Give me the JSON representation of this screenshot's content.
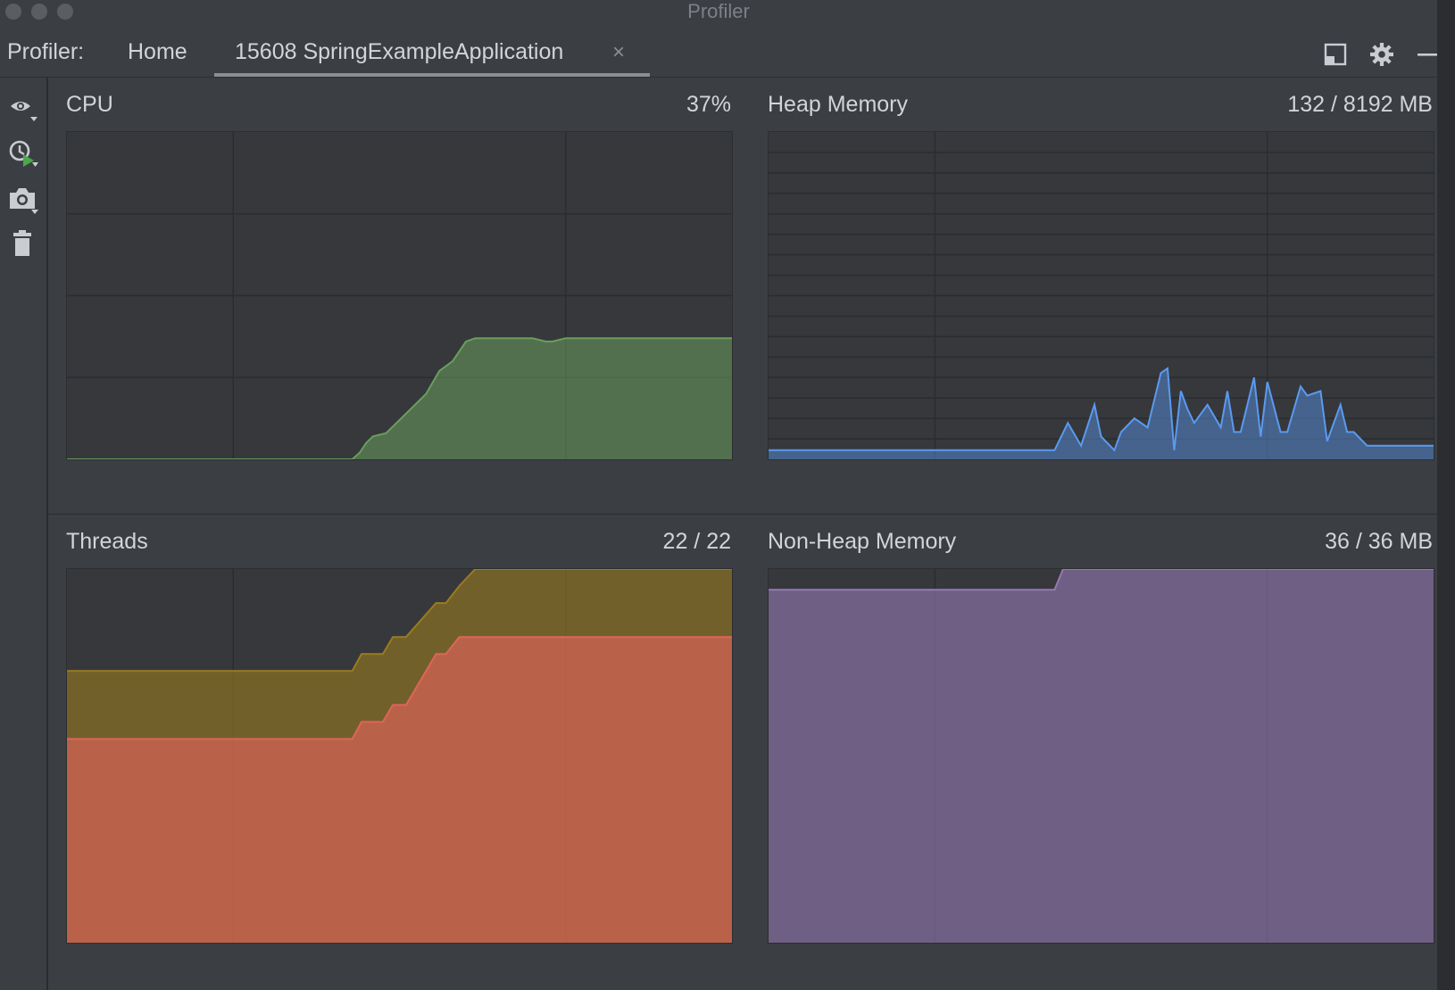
{
  "window": {
    "title": "Profiler"
  },
  "toolbar": {
    "prefix": "Profiler:",
    "home_tab": "Home",
    "session_tab": "15608 SpringExampleApplication",
    "close_symbol": "×"
  },
  "icons": {
    "top": [
      "restore-layout-icon",
      "gear-icon",
      "minimize-icon"
    ],
    "side": [
      "eye-dropdown-icon",
      "clock-run-icon",
      "camera-icon",
      "trash-icon"
    ]
  },
  "colors": {
    "cpu": "#6a9e5c",
    "heap": "#5a9af0",
    "threads_total": "#9a7b1e",
    "threads_active": "#e0645a",
    "non_heap": "#9679b4"
  },
  "panels": {
    "cpu": {
      "title": "CPU",
      "value": "37%"
    },
    "heap": {
      "title": "Heap Memory",
      "value": "132 / 8192 MB"
    },
    "threads": {
      "title": "Threads",
      "value": "22 / 22"
    },
    "non_heap": {
      "title": "Non-Heap Memory",
      "value": "36 / 36 MB"
    }
  },
  "chart_data": [
    {
      "type": "area",
      "title": "CPU",
      "unit": "%",
      "ylim": [
        0,
        100
      ],
      "x": [
        0,
        5,
        10,
        15,
        20,
        25,
        30,
        35,
        40,
        42.9,
        44,
        45,
        46,
        48,
        50,
        52,
        54,
        56,
        58,
        60,
        61.4,
        63,
        65,
        67,
        70,
        72,
        73,
        75,
        77,
        80,
        85,
        90,
        95,
        100
      ],
      "values": [
        0,
        0,
        0,
        0,
        0,
        0,
        0,
        0,
        0,
        0,
        2,
        5,
        7,
        8,
        12,
        16,
        20,
        27,
        30,
        36,
        37,
        37,
        37,
        37,
        37,
        36,
        36,
        37,
        37,
        37,
        37,
        37,
        37,
        37
      ],
      "grid": true
    },
    {
      "type": "area",
      "title": "Heap Memory",
      "unit": "MB",
      "x": [
        0,
        10,
        20,
        30,
        40,
        43,
        45,
        47,
        49,
        50,
        52,
        53,
        55,
        57,
        59,
        60,
        61,
        62,
        63,
        64,
        66,
        68,
        69,
        70,
        71,
        73,
        74,
        75,
        77,
        78,
        80,
        81,
        83,
        84,
        86,
        87,
        88,
        90,
        92,
        93,
        95,
        96,
        98,
        100
      ],
      "values": [
        10,
        10,
        10,
        10,
        10,
        10,
        40,
        15,
        60,
        25,
        10,
        30,
        45,
        35,
        95,
        100,
        10,
        75,
        55,
        40,
        60,
        35,
        75,
        30,
        30,
        90,
        25,
        85,
        30,
        30,
        80,
        70,
        75,
        20,
        60,
        30,
        30,
        15,
        15,
        15,
        15,
        15,
        15,
        15
      ],
      "grid": true
    },
    {
      "type": "area",
      "title": "Threads",
      "ylim": [
        0,
        22
      ],
      "x": [
        0,
        10,
        20,
        30,
        40,
        42.9,
        44.3,
        47.5,
        49,
        51,
        55.5,
        57,
        59,
        61.4,
        100
      ],
      "series": [
        {
          "values": [
            16,
            16,
            16,
            16,
            16,
            16,
            17,
            17,
            18,
            18,
            20,
            20,
            21,
            22,
            22
          ]
        },
        {
          "values": [
            12,
            12,
            12,
            12,
            12,
            12,
            13,
            13,
            14,
            14,
            17,
            17,
            18,
            18,
            18
          ]
        }
      ],
      "grid": true
    },
    {
      "type": "area",
      "title": "Non-Heap Memory",
      "unit": "MB",
      "ylim": [
        0,
        36
      ],
      "x": [
        0,
        10,
        20,
        30,
        40,
        43,
        44.3,
        100
      ],
      "values": [
        34,
        34,
        34,
        34,
        34,
        34,
        36,
        36
      ],
      "grid": true
    }
  ]
}
